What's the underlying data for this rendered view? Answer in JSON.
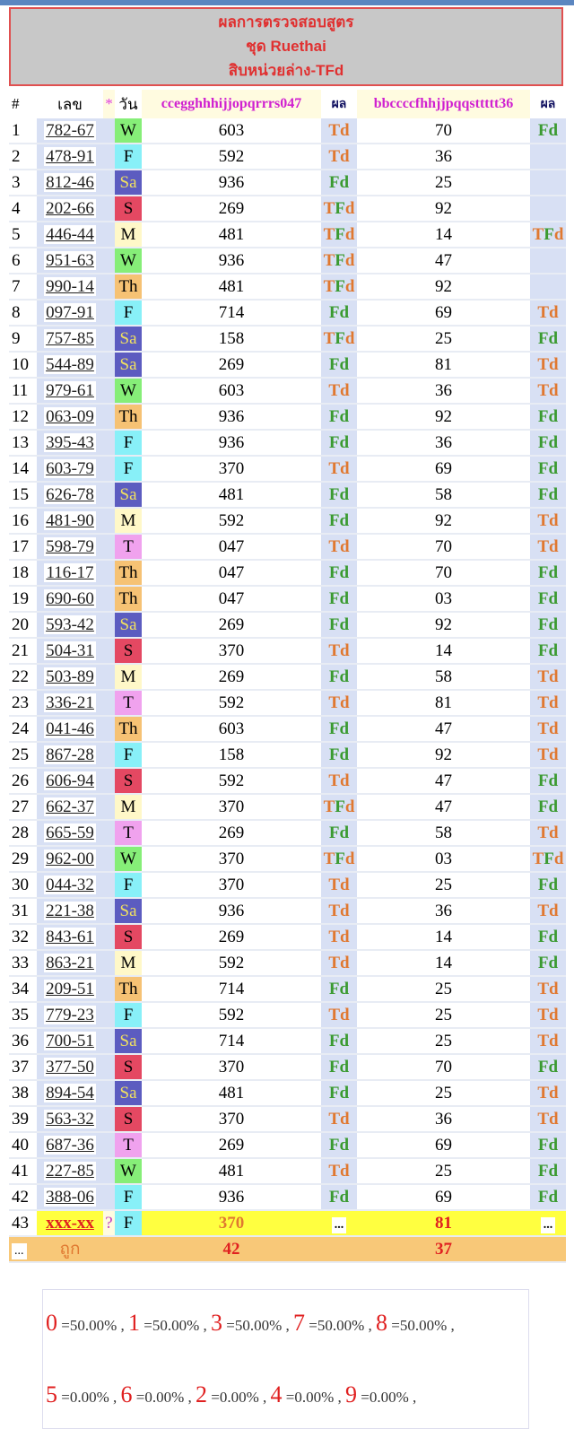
{
  "title": {
    "line1": "ผลการตรวจสอบสูตร",
    "line2": "ชุด Ruethai",
    "line3": "สิบหน่วยล่าง-TFd"
  },
  "header": {
    "hash": "#",
    "number": "เลข",
    "star": "*",
    "day": "วัน",
    "formula1": "ccegghhhijjopqrrrs047",
    "result1": "ผล",
    "formula2": "bbccccfhhjjpqqsttttt36",
    "result2": "ผล"
  },
  "day_colors": {
    "W": "#86ee78",
    "F": "#88f0f8",
    "Sa": "#5c5cc0",
    "S": "#e44862",
    "M": "#fff8c8",
    "Th": "#f6c274",
    "T": "#f0a2ee"
  },
  "rows": [
    [
      "1",
      "782-67",
      "W",
      "603",
      "Td",
      "70",
      "Fd"
    ],
    [
      "2",
      "478-91",
      "F",
      "592",
      "Td",
      "36",
      ""
    ],
    [
      "3",
      "812-46",
      "Sa",
      "936",
      "Fd",
      "25",
      ""
    ],
    [
      "4",
      "202-66",
      "S",
      "269",
      "TFd",
      "92",
      ""
    ],
    [
      "5",
      "446-44",
      "M",
      "481",
      "TFd",
      "14",
      "TFd"
    ],
    [
      "6",
      "951-63",
      "W",
      "936",
      "TFd",
      "47",
      ""
    ],
    [
      "7",
      "990-14",
      "Th",
      "481",
      "TFd",
      "92",
      ""
    ],
    [
      "8",
      "097-91",
      "F",
      "714",
      "Fd",
      "69",
      "Td"
    ],
    [
      "9",
      "757-85",
      "Sa",
      "158",
      "TFd",
      "25",
      "Fd"
    ],
    [
      "10",
      "544-89",
      "Sa",
      "269",
      "Fd",
      "81",
      "Td"
    ],
    [
      "11",
      "979-61",
      "W",
      "603",
      "Td",
      "36",
      "Td"
    ],
    [
      "12",
      "063-09",
      "Th",
      "936",
      "Fd",
      "92",
      "Fd"
    ],
    [
      "13",
      "395-43",
      "F",
      "936",
      "Fd",
      "36",
      "Fd"
    ],
    [
      "14",
      "603-79",
      "F",
      "370",
      "Td",
      "69",
      "Fd"
    ],
    [
      "15",
      "626-78",
      "Sa",
      "481",
      "Fd",
      "58",
      "Fd"
    ],
    [
      "16",
      "481-90",
      "M",
      "592",
      "Fd",
      "92",
      "Td"
    ],
    [
      "17",
      "598-79",
      "T",
      "047",
      "Td",
      "70",
      "Td"
    ],
    [
      "18",
      "116-17",
      "Th",
      "047",
      "Fd",
      "70",
      "Fd"
    ],
    [
      "19",
      "690-60",
      "Th",
      "047",
      "Fd",
      "03",
      "Fd"
    ],
    [
      "20",
      "593-42",
      "Sa",
      "269",
      "Fd",
      "92",
      "Fd"
    ],
    [
      "21",
      "504-31",
      "S",
      "370",
      "Td",
      "14",
      "Fd"
    ],
    [
      "22",
      "503-89",
      "M",
      "269",
      "Fd",
      "58",
      "Td"
    ],
    [
      "23",
      "336-21",
      "T",
      "592",
      "Td",
      "81",
      "Td"
    ],
    [
      "24",
      "041-46",
      "Th",
      "603",
      "Fd",
      "47",
      "Td"
    ],
    [
      "25",
      "867-28",
      "F",
      "158",
      "Fd",
      "92",
      "Td"
    ],
    [
      "26",
      "606-94",
      "S",
      "592",
      "Td",
      "47",
      "Fd"
    ],
    [
      "27",
      "662-37",
      "M",
      "370",
      "TFd",
      "47",
      "Fd"
    ],
    [
      "28",
      "665-59",
      "T",
      "269",
      "Fd",
      "58",
      "Td"
    ],
    [
      "29",
      "962-00",
      "W",
      "370",
      "TFd",
      "03",
      "TFd"
    ],
    [
      "30",
      "044-32",
      "F",
      "370",
      "Td",
      "25",
      "Fd"
    ],
    [
      "31",
      "221-38",
      "Sa",
      "936",
      "Td",
      "36",
      "Td"
    ],
    [
      "32",
      "843-61",
      "S",
      "269",
      "Td",
      "14",
      "Fd"
    ],
    [
      "33",
      "863-21",
      "M",
      "592",
      "Td",
      "14",
      "Fd"
    ],
    [
      "34",
      "209-51",
      "Th",
      "714",
      "Fd",
      "25",
      "Td"
    ],
    [
      "35",
      "779-23",
      "F",
      "592",
      "Td",
      "25",
      "Td"
    ],
    [
      "36",
      "700-51",
      "Sa",
      "714",
      "Fd",
      "25",
      "Td"
    ],
    [
      "37",
      "377-50",
      "S",
      "370",
      "Fd",
      "70",
      "Fd"
    ],
    [
      "38",
      "894-54",
      "Sa",
      "481",
      "Fd",
      "25",
      "Td"
    ],
    [
      "39",
      "563-32",
      "S",
      "370",
      "Td",
      "36",
      "Td"
    ],
    [
      "40",
      "687-36",
      "T",
      "269",
      "Fd",
      "69",
      "Fd"
    ],
    [
      "41",
      "227-85",
      "W",
      "481",
      "Td",
      "25",
      "Fd"
    ],
    [
      "42",
      "388-06",
      "F",
      "936",
      "Fd",
      "69",
      "Fd"
    ]
  ],
  "next_row": {
    "no": "43",
    "number": "xxx-xx",
    "star": "?",
    "day": "F",
    "f1": "370",
    "r1": "...",
    "f2": "81",
    "r2": "..."
  },
  "summary": {
    "more": "...",
    "label": "ถูก",
    "f1": "42",
    "f2": "37"
  },
  "stats": {
    "line1": [
      [
        "0",
        "=50.00%"
      ],
      [
        "1",
        "=50.00%"
      ],
      [
        "3",
        "=50.00%"
      ],
      [
        "7",
        "=50.00%"
      ],
      [
        "8",
        "=50.00%"
      ]
    ],
    "line2": [
      [
        "5",
        "=0.00%"
      ],
      [
        "6",
        "=0.00%"
      ],
      [
        "2",
        "=0.00%"
      ],
      [
        "4",
        "=0.00%"
      ],
      [
        "9",
        "=0.00%"
      ]
    ]
  }
}
